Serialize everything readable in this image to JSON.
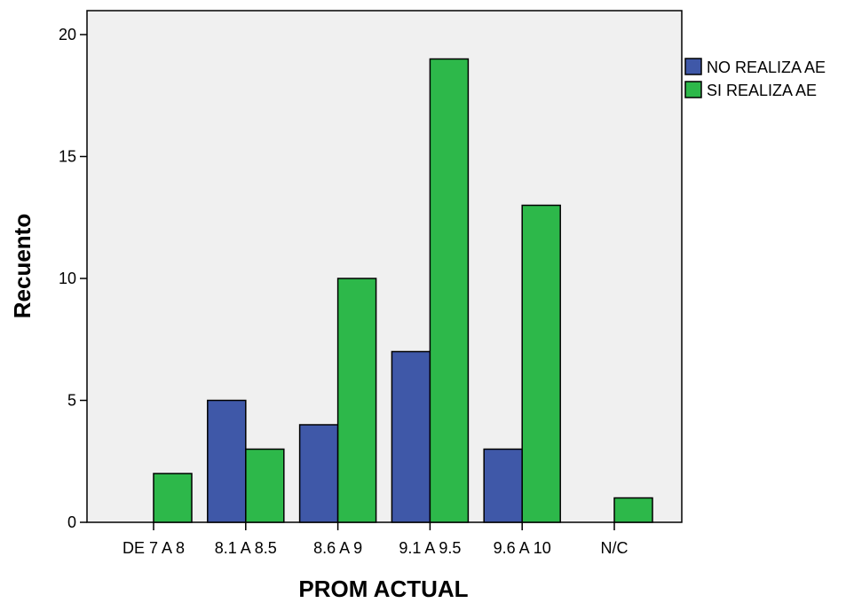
{
  "chart_data": {
    "type": "bar",
    "xlabel": "PROM ACTUAL",
    "ylabel": "Recuento",
    "ylim": [
      0,
      20
    ],
    "yticks": [
      0,
      5,
      10,
      15,
      20
    ],
    "categories": [
      "DE 7 A 8",
      "8.1 A 8.5",
      "8.6 A 9",
      "9.1 A 9.5",
      "9.6 A 10",
      "N/C"
    ],
    "series": [
      {
        "name": "NO REALIZA AE",
        "color": "#3f58a8",
        "values": [
          0,
          5,
          4,
          7,
          3,
          0
        ]
      },
      {
        "name": "SI REALIZA AE",
        "color": "#2db84a",
        "values": [
          2,
          3,
          10,
          19,
          13,
          1
        ]
      }
    ],
    "plot_background": "#f0f0f0",
    "grid": false,
    "legend_position": "right-top"
  }
}
